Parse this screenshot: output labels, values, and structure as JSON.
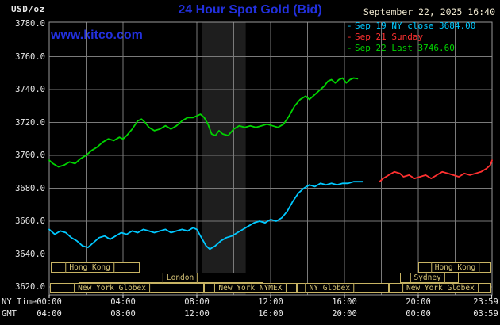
{
  "header": {
    "unit_label": "USD/oz",
    "title": "24 Hour Spot Gold (Bid)",
    "datetime": "September 22, 2025 16:40",
    "watermark": "www.kitco.com"
  },
  "legend": [
    {
      "marker": "-",
      "text": "Sep 19 NY close 3684.00",
      "color": "#00c8ff"
    },
    {
      "marker": "-",
      "text": "Sep 21 Sunday",
      "color": "#ff3030"
    },
    {
      "marker": "-",
      "text": "Sep 22 Last 3746.60",
      "color": "#00d400"
    }
  ],
  "axes": {
    "y_ticks": [
      "3780.0",
      "3760.0",
      "3740.0",
      "3720.0",
      "3700.0",
      "3680.0",
      "3660.0",
      "3640.0",
      "3620.0"
    ],
    "x_rows": [
      {
        "label": "NY Time",
        "ticks": [
          "00:00",
          "04:00",
          "08:00",
          "12:00",
          "16:00",
          "20:00",
          "23:59"
        ]
      },
      {
        "label": "GMT",
        "ticks": [
          "04:00",
          "08:00",
          "12:00",
          "16:00",
          "20:00",
          "00:00",
          "03:59"
        ]
      }
    ]
  },
  "colors": {
    "background": "#000000",
    "grid": "#7a7a7a",
    "border": "#9a9a9a",
    "band": "#1e1e1e",
    "session": "#c8b464",
    "axis_text": "#e8e8e8",
    "title_blue": "#2230dd",
    "date_text": "#efe8cf"
  },
  "chart_data": {
    "type": "line",
    "title": "24 Hour Spot Gold (Bid)",
    "ylabel": "USD/oz",
    "xlim": [
      0,
      24
    ],
    "ylim": [
      3620,
      3780
    ],
    "y_tick_step": 20,
    "x_tick_hours": [
      0,
      4,
      8,
      12,
      16,
      20,
      23.983
    ],
    "grid": true,
    "legend_position": "top-right",
    "highlight_band_hours": [
      8.3,
      10.65
    ],
    "series": [
      {
        "name": "Sep 19 NY close 3684.00",
        "color": "#00c8ff",
        "points": [
          [
            0,
            3655
          ],
          [
            0.3,
            3652
          ],
          [
            0.6,
            3654
          ],
          [
            0.9,
            3653
          ],
          [
            1.2,
            3650
          ],
          [
            1.5,
            3648
          ],
          [
            1.8,
            3645
          ],
          [
            2.1,
            3644
          ],
          [
            2.4,
            3647
          ],
          [
            2.7,
            3650
          ],
          [
            3,
            3651
          ],
          [
            3.3,
            3649
          ],
          [
            3.6,
            3651
          ],
          [
            3.9,
            3653
          ],
          [
            4.2,
            3652
          ],
          [
            4.5,
            3654
          ],
          [
            4.8,
            3653
          ],
          [
            5.1,
            3655
          ],
          [
            5.4,
            3654
          ],
          [
            5.7,
            3653
          ],
          [
            6,
            3654
          ],
          [
            6.3,
            3655
          ],
          [
            6.6,
            3653
          ],
          [
            6.9,
            3654
          ],
          [
            7.2,
            3655
          ],
          [
            7.5,
            3654
          ],
          [
            7.8,
            3656
          ],
          [
            8,
            3655
          ],
          [
            8.2,
            3651
          ],
          [
            8.5,
            3645
          ],
          [
            8.7,
            3643
          ],
          [
            9,
            3645
          ],
          [
            9.3,
            3648
          ],
          [
            9.6,
            3650
          ],
          [
            9.9,
            3651
          ],
          [
            10.2,
            3653
          ],
          [
            10.5,
            3655
          ],
          [
            10.8,
            3657
          ],
          [
            11.1,
            3659
          ],
          [
            11.4,
            3660
          ],
          [
            11.7,
            3659
          ],
          [
            12,
            3661
          ],
          [
            12.3,
            3660
          ],
          [
            12.6,
            3662
          ],
          [
            12.9,
            3666
          ],
          [
            13.2,
            3672
          ],
          [
            13.5,
            3677
          ],
          [
            13.8,
            3680
          ],
          [
            14.1,
            3682
          ],
          [
            14.4,
            3681
          ],
          [
            14.7,
            3683
          ],
          [
            15,
            3682
          ],
          [
            15.3,
            3683
          ],
          [
            15.6,
            3682
          ],
          [
            15.9,
            3683
          ],
          [
            16.2,
            3683
          ],
          [
            16.5,
            3684
          ],
          [
            17,
            3684
          ]
        ]
      },
      {
        "name": "Sep 21 Sunday",
        "color": "#ff3030",
        "points": [
          [
            17.9,
            3684
          ],
          [
            18.1,
            3686
          ],
          [
            18.4,
            3688
          ],
          [
            18.7,
            3690
          ],
          [
            19,
            3689
          ],
          [
            19.2,
            3687
          ],
          [
            19.5,
            3688
          ],
          [
            19.8,
            3686
          ],
          [
            20.1,
            3687
          ],
          [
            20.4,
            3688
          ],
          [
            20.7,
            3686
          ],
          [
            21,
            3688
          ],
          [
            21.3,
            3690
          ],
          [
            21.6,
            3689
          ],
          [
            21.9,
            3688
          ],
          [
            22.2,
            3687
          ],
          [
            22.5,
            3689
          ],
          [
            22.8,
            3688
          ],
          [
            23.1,
            3689
          ],
          [
            23.4,
            3690
          ],
          [
            23.7,
            3692
          ],
          [
            23.9,
            3694
          ],
          [
            24,
            3697
          ]
        ]
      },
      {
        "name": "Sep 22 Last 3746.60",
        "color": "#00d400",
        "points": [
          [
            0,
            3697
          ],
          [
            0.2,
            3695
          ],
          [
            0.5,
            3693
          ],
          [
            0.8,
            3694
          ],
          [
            1.1,
            3696
          ],
          [
            1.4,
            3695
          ],
          [
            1.7,
            3698
          ],
          [
            2,
            3700
          ],
          [
            2.3,
            3703
          ],
          [
            2.6,
            3705
          ],
          [
            2.9,
            3708
          ],
          [
            3.2,
            3710
          ],
          [
            3.5,
            3709
          ],
          [
            3.8,
            3711
          ],
          [
            4,
            3710
          ],
          [
            4.2,
            3712
          ],
          [
            4.5,
            3716
          ],
          [
            4.8,
            3721
          ],
          [
            5,
            3722
          ],
          [
            5.2,
            3720
          ],
          [
            5.4,
            3717
          ],
          [
            5.7,
            3715
          ],
          [
            6,
            3716
          ],
          [
            6.3,
            3718
          ],
          [
            6.6,
            3716
          ],
          [
            6.9,
            3718
          ],
          [
            7.2,
            3721
          ],
          [
            7.5,
            3723
          ],
          [
            7.8,
            3723
          ],
          [
            8,
            3724
          ],
          [
            8.2,
            3725
          ],
          [
            8.4,
            3723
          ],
          [
            8.6,
            3719
          ],
          [
            8.8,
            3713
          ],
          [
            9,
            3712
          ],
          [
            9.2,
            3715
          ],
          [
            9.4,
            3713
          ],
          [
            9.7,
            3712
          ],
          [
            10,
            3716
          ],
          [
            10.3,
            3718
          ],
          [
            10.6,
            3717
          ],
          [
            10.9,
            3718
          ],
          [
            11.2,
            3717
          ],
          [
            11.5,
            3718
          ],
          [
            11.8,
            3719
          ],
          [
            12.1,
            3718
          ],
          [
            12.4,
            3717
          ],
          [
            12.7,
            3719
          ],
          [
            13,
            3724
          ],
          [
            13.3,
            3730
          ],
          [
            13.6,
            3734
          ],
          [
            13.9,
            3736
          ],
          [
            14.1,
            3734
          ],
          [
            14.3,
            3736
          ],
          [
            14.6,
            3739
          ],
          [
            14.9,
            3742
          ],
          [
            15.1,
            3745
          ],
          [
            15.3,
            3746
          ],
          [
            15.5,
            3744
          ],
          [
            15.7,
            3746
          ],
          [
            15.9,
            3747
          ],
          [
            16.1,
            3744
          ],
          [
            16.3,
            3746
          ],
          [
            16.5,
            3747
          ],
          [
            16.7,
            3746.6
          ]
        ]
      }
    ],
    "sessions": [
      {
        "row": 0,
        "start": 0.1,
        "end": 4.9,
        "label": "Hong Kong",
        "label_center": 2.2
      },
      {
        "row": 0,
        "start": 20.0,
        "end": 23.95,
        "label": "Hong Kong",
        "label_center": 22.0
      },
      {
        "row": 1,
        "start": 1.6,
        "end": 11.6,
        "label": "London",
        "label_center": 7.1
      },
      {
        "row": 1,
        "start": 19.0,
        "end": 22.2,
        "label": "Sydney",
        "label_center": 20.5
      },
      {
        "row": 2,
        "start": 0.05,
        "end": 8.4,
        "label": "New York Globex",
        "label_center": 3.4
      },
      {
        "row": 2,
        "start": 8.4,
        "end": 13.4,
        "label": "New York NYMEX",
        "label_center": 10.9
      },
      {
        "row": 2,
        "start": 13.4,
        "end": 18.4,
        "label": "NY Globex",
        "label_center": 15.2
      },
      {
        "row": 2,
        "start": 18.4,
        "end": 23.95,
        "label": "New York Globex",
        "label_center": 21.2
      }
    ]
  }
}
